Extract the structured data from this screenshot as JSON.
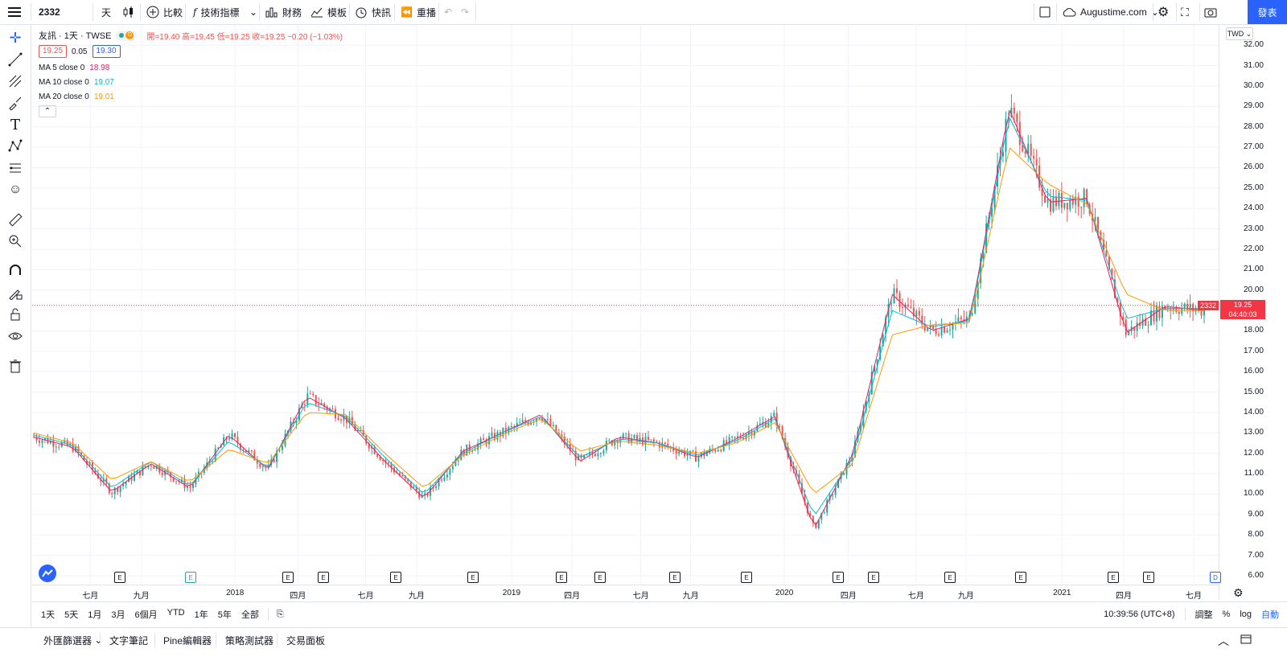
{
  "toolbar": {
    "menu_icon": "hamburger-icon",
    "symbol": "2332",
    "interval": "天",
    "compare": "比較",
    "indicators": "技術指標",
    "financials": "財務",
    "templates": "模板",
    "alert": "快訊",
    "replay": "重播",
    "account": "Augustime.com",
    "publish": "發表"
  },
  "legend": {
    "title": "友訊 · 1天 · TWSE",
    "open_label": "開=19.40",
    "high_label": "高=19.45",
    "low_label": "低=19.25",
    "close_label": "收=19.25",
    "change": "−0.20 (−1.03%)",
    "bid": "19.25",
    "spread": "0.05",
    "ask": "19.30",
    "ma5_name": "MA 5 close 0",
    "ma5_val": "18.98",
    "ma10_name": "MA 10 close 0",
    "ma10_val": "19.07",
    "ma20_name": "MA 20 close 0",
    "ma20_val": "19.01",
    "d_badge": "D"
  },
  "price_axis": {
    "currency": "TWD",
    "ticks": [
      "32.00",
      "31.00",
      "30.00",
      "29.00",
      "28.00",
      "27.00",
      "26.00",
      "25.00",
      "24.00",
      "23.00",
      "22.00",
      "21.00",
      "20.00",
      "19.00",
      "18.00",
      "17.00",
      "16.00",
      "15.00",
      "14.00",
      "13.00",
      "12.00",
      "11.00",
      "10.00",
      "9.00",
      "8.00",
      "7.00",
      "6.00"
    ],
    "last_price": "19.25",
    "countdown": "04:40:03",
    "symbol_tag": "2332"
  },
  "time_axis": {
    "labels": [
      {
        "text": "七月",
        "pos": 0.049
      },
      {
        "text": "九月",
        "pos": 0.092
      },
      {
        "text": "2018",
        "pos": 0.171
      },
      {
        "text": "四月",
        "pos": 0.224
      },
      {
        "text": "七月",
        "pos": 0.281
      },
      {
        "text": "九月",
        "pos": 0.324
      },
      {
        "text": "2019",
        "pos": 0.404
      },
      {
        "text": "四月",
        "pos": 0.455
      },
      {
        "text": "七月",
        "pos": 0.513
      },
      {
        "text": "九月",
        "pos": 0.555
      },
      {
        "text": "2020",
        "pos": 0.634
      },
      {
        "text": "四月",
        "pos": 0.688
      },
      {
        "text": "七月",
        "pos": 0.745
      },
      {
        "text": "九月",
        "pos": 0.787
      },
      {
        "text": "2021",
        "pos": 0.868
      },
      {
        "text": "四月",
        "pos": 0.92
      },
      {
        "text": "七月",
        "pos": 0.979
      }
    ]
  },
  "ranges": [
    "1天",
    "5天",
    "1月",
    "3月",
    "6個月",
    "YTD",
    "1年",
    "5年",
    "全部"
  ],
  "bottom_right": {
    "clock": "10:39:56 (UTC+8)",
    "adjust": "調整",
    "percent": "%",
    "log": "log",
    "auto": "自動"
  },
  "footer_tabs": [
    "外匯篩選器",
    "文字筆記",
    "Pine編輯器",
    "策略測試器",
    "交易面板"
  ],
  "colors": {
    "up": "#26a69a",
    "down": "#ef5350",
    "ma5": "#e91e63",
    "ma10": "#00bcd4",
    "ma20": "#ff9800",
    "accent": "#2962ff"
  },
  "chart_data": {
    "type": "line",
    "symbol": "2332",
    "ylim": [
      6,
      32.6
    ],
    "x": [
      "2017-07",
      "2017-09",
      "2017-10",
      "2017-12",
      "2018-01",
      "2018-03",
      "2018-05",
      "2018-06",
      "2018-08",
      "2018-10",
      "2018-12",
      "2019-01",
      "2019-03",
      "2019-05",
      "2019-06",
      "2019-08",
      "2019-10",
      "2019-12",
      "2020-01",
      "2020-03",
      "2020-04",
      "2020-06",
      "2020-07",
      "2020-09",
      "2020-11",
      "2021-01",
      "2021-02",
      "2021-03",
      "2021-04",
      "2021-05",
      "2021-07"
    ],
    "series": [
      {
        "name": "MA 5 close 0",
        "values": [
          12.8,
          12.3,
          10.1,
          11.5,
          10.3,
          12.9,
          11.2,
          14.8,
          13.7,
          11.6,
          9.8,
          12.1,
          13.0,
          13.9,
          11.6,
          12.8,
          12.5,
          11.8,
          12.7,
          13.8,
          8.3,
          12.0,
          19.8,
          18.0,
          18.6,
          28.9,
          24.3,
          24.5,
          17.9,
          19.2,
          19.0
        ]
      },
      {
        "name": "MA 10 close 0",
        "values": [
          12.9,
          12.4,
          10.3,
          11.6,
          10.4,
          12.6,
          11.3,
          14.5,
          13.8,
          11.8,
          10.0,
          12.0,
          13.0,
          13.8,
          11.8,
          12.7,
          12.5,
          11.9,
          12.6,
          13.7,
          8.9,
          11.8,
          19.0,
          18.2,
          18.5,
          28.5,
          24.6,
          24.4,
          18.6,
          19.1,
          19.1
        ]
      },
      {
        "name": "MA 20 close 0",
        "values": [
          13.0,
          12.5,
          10.7,
          11.6,
          10.6,
          12.2,
          11.5,
          14.0,
          13.9,
          12.0,
          10.3,
          11.9,
          12.9,
          13.7,
          12.1,
          12.6,
          12.4,
          12.0,
          12.5,
          13.5,
          10.0,
          11.5,
          17.8,
          18.3,
          18.4,
          27.0,
          25.2,
          24.2,
          19.8,
          19.0,
          19.0
        ]
      }
    ]
  }
}
